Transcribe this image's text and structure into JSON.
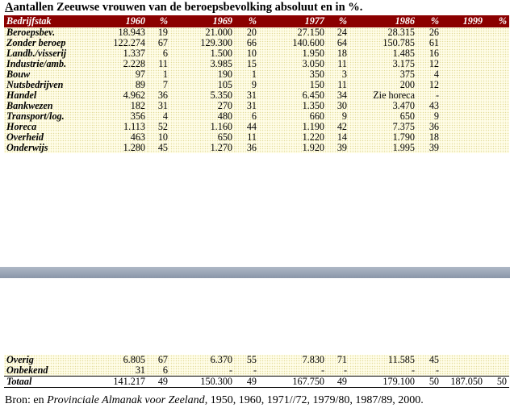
{
  "title": {
    "prefix": "A",
    "rest": "antallen Zeeuwse vrouwen van de beroepsbevolking absoluut en in %."
  },
  "headers": [
    "Bedrijfstak",
    "1960",
    "%",
    "1969",
    "%",
    "1977",
    "%",
    "1986",
    "%",
    "1999",
    "%"
  ],
  "rows_top": [
    {
      "label": "Beroepsbev.",
      "cells": [
        "18.943",
        "19",
        "21.000",
        "20",
        "27.150",
        "24",
        "28.315",
        "26",
        "",
        ""
      ]
    },
    {
      "label": "Zonder beroep",
      "cells": [
        "122.274",
        "67",
        "129.300",
        "66",
        "140.600",
        "64",
        "150.785",
        "61",
        "",
        ""
      ]
    },
    {
      "label": "Landb./visserij",
      "cells": [
        "1.337",
        "6",
        "1.500",
        "10",
        "1.950",
        "18",
        "1.485",
        "16",
        "",
        ""
      ]
    },
    {
      "label": "Industrie/amb.",
      "cells": [
        "2.228",
        "11",
        "3.985",
        "15",
        "3.050",
        "11",
        "3.175",
        "12",
        "",
        ""
      ]
    },
    {
      "label": "Bouw",
      "cells": [
        "97",
        "1",
        "190",
        "1",
        "350",
        "3",
        "375",
        "4",
        "",
        ""
      ]
    },
    {
      "label": "Nutsbedrijven",
      "cells": [
        "89",
        "7",
        "105",
        "9",
        "150",
        "11",
        "200",
        "12",
        "",
        ""
      ]
    },
    {
      "label": "Handel",
      "cells": [
        "4.962",
        "36",
        "5.350",
        "31",
        "6.450",
        "34",
        "Zie horeca",
        "-",
        "",
        ""
      ]
    },
    {
      "label": "Bankwezen",
      "cells": [
        "182",
        "31",
        "270",
        "31",
        "1.350",
        "30",
        "3.470",
        "43",
        "",
        ""
      ]
    },
    {
      "label": "Transport/log.",
      "cells": [
        "356",
        "4",
        "480",
        "6",
        "660",
        "9",
        "650",
        "9",
        "",
        ""
      ]
    },
    {
      "label": "Horeca",
      "cells": [
        "1.113",
        "52",
        "1.160",
        "44",
        "1.190",
        "42",
        "7.375",
        "36",
        "",
        ""
      ]
    },
    {
      "label": "Overheid",
      "cells": [
        "463",
        "10",
        "650",
        "11",
        "1.220",
        "14",
        "1.790",
        "18",
        "",
        ""
      ]
    },
    {
      "label": "Onderwijs",
      "cells": [
        "1.280",
        "45",
        "1.270",
        "36",
        "1.920",
        "39",
        "1.995",
        "39",
        "",
        ""
      ]
    }
  ],
  "rows_bottom": [
    {
      "label": "Overig",
      "cells": [
        "6.805",
        "67",
        "6.370",
        "55",
        "7.830",
        "71",
        "11.585",
        "45",
        "",
        ""
      ]
    },
    {
      "label": "Onbekend",
      "cells": [
        "31",
        "6",
        "-",
        "-",
        "-",
        "-",
        "-",
        "-",
        "",
        ""
      ]
    }
  ],
  "total": {
    "label": "Totaal",
    "cells": [
      "141.217",
      "49",
      "150.300",
      "49",
      "167.750",
      "49",
      "179.100",
      "50",
      "187.050",
      "50"
    ]
  },
  "source": {
    "prefix": "Bron: en ",
    "italic": "Provinciale Almanak voor Zeeland",
    "suffix": ", 1950, 1960, 1971//72, 1979/80, 1987/89, 2000."
  }
}
